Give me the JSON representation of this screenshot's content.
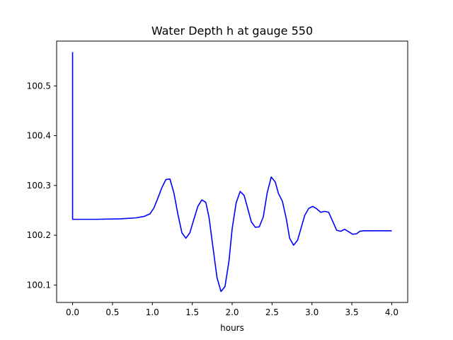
{
  "chart_data": {
    "type": "line",
    "title": "Water Depth h at gauge 550",
    "xlabel": "hours",
    "ylabel": "",
    "xlim": [
      -0.2,
      4.2
    ],
    "ylim": [
      100.065,
      100.59
    ],
    "xticks": [
      0.0,
      0.5,
      1.0,
      1.5,
      2.0,
      2.5,
      3.0,
      3.5,
      4.0
    ],
    "xtick_labels": [
      "0.0",
      "0.5",
      "1.0",
      "1.5",
      "2.0",
      "2.5",
      "3.0",
      "3.5",
      "4.0"
    ],
    "yticks": [
      100.1,
      100.2,
      100.3,
      100.4,
      100.5
    ],
    "ytick_labels": [
      "100.1",
      "100.2",
      "100.3",
      "100.4",
      "100.5"
    ],
    "grid": false,
    "series": [
      {
        "color": "#0000ff",
        "x": [
          0.0,
          0.0,
          0.0,
          0.3,
          0.6,
          0.8,
          0.9,
          0.97,
          1.02,
          1.07,
          1.12,
          1.17,
          1.22,
          1.27,
          1.32,
          1.37,
          1.42,
          1.47,
          1.52,
          1.57,
          1.62,
          1.67,
          1.71,
          1.76,
          1.81,
          1.86,
          1.91,
          1.96,
          2.0,
          2.05,
          2.1,
          2.15,
          2.2,
          2.24,
          2.29,
          2.34,
          2.39,
          2.44,
          2.49,
          2.54,
          2.58,
          2.63,
          2.68,
          2.72,
          2.77,
          2.82,
          2.87,
          2.91,
          2.96,
          3.01,
          3.06,
          3.11,
          3.16,
          3.21,
          3.26,
          3.31,
          3.36,
          3.41,
          3.46,
          3.51,
          3.56,
          3.6,
          3.65,
          3.7,
          3.75,
          3.79,
          3.84,
          3.88,
          3.93,
          3.98,
          4.0
        ],
        "y": [
          100.568,
          100.232,
          100.232,
          100.232,
          100.233,
          100.235,
          100.238,
          100.243,
          100.255,
          100.275,
          100.296,
          100.312,
          100.313,
          100.285,
          100.242,
          100.205,
          100.194,
          100.205,
          100.232,
          100.258,
          100.271,
          100.266,
          100.236,
          100.175,
          100.115,
          100.087,
          100.097,
          100.148,
          100.213,
          100.265,
          100.288,
          100.28,
          100.251,
          100.227,
          100.216,
          100.217,
          100.237,
          100.286,
          100.317,
          100.307,
          100.284,
          100.268,
          100.232,
          100.194,
          100.18,
          100.19,
          100.218,
          100.24,
          100.254,
          100.258,
          100.253,
          100.246,
          100.248,
          100.246,
          100.228,
          100.21,
          100.208,
          100.212,
          100.207,
          100.202,
          100.203,
          100.208,
          100.209,
          100.209,
          100.209,
          100.209,
          100.209,
          100.209,
          100.209,
          100.209,
          100.209
        ]
      }
    ]
  }
}
